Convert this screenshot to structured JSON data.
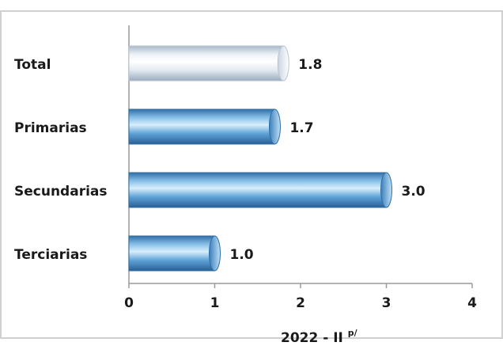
{
  "chart_data": {
    "type": "bar",
    "orientation": "horizontal",
    "categories": [
      "Total",
      "Primarias",
      "Secundarias",
      "Terciarias"
    ],
    "values": [
      1.8,
      1.7,
      3.0,
      1.0
    ],
    "value_labels": [
      "1.8",
      "1.7",
      "3.0",
      "1.0"
    ],
    "xlim": [
      0,
      4
    ],
    "xticks": [
      "0",
      "1",
      "2",
      "3",
      "4"
    ],
    "xlabel": "2022 - II",
    "xlabel_superscript": "p/",
    "grid": false,
    "bar_colors": [
      "#e6edf5",
      "#4a90c8",
      "#4a90c8",
      "#4a90c8"
    ]
  }
}
